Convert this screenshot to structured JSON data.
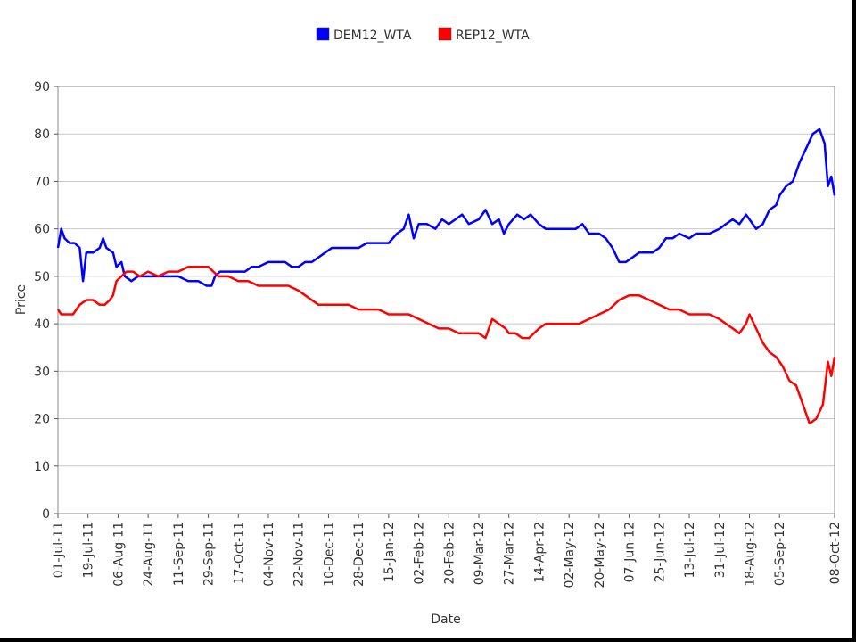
{
  "chart_data": {
    "type": "line",
    "title": "",
    "xlabel": "Date",
    "ylabel": "Price",
    "ylim": [
      0,
      90
    ],
    "yticks": [
      0,
      10,
      20,
      30,
      40,
      50,
      60,
      70,
      80,
      90
    ],
    "grid": true,
    "legend_position": "top-center",
    "x_tick_labels": [
      "01-Jul-11",
      "19-Jul-11",
      "06-Aug-11",
      "24-Aug-11",
      "11-Sep-11",
      "29-Sep-11",
      "17-Oct-11",
      "04-Nov-11",
      "22-Nov-11",
      "10-Dec-11",
      "28-Dec-11",
      "15-Jan-12",
      "02-Feb-12",
      "20-Feb-12",
      "09-Mar-12",
      "27-Mar-12",
      "14-Apr-12",
      "02-May-12",
      "20-May-12",
      "07-Jun-12",
      "25-Jun-12",
      "13-Jul-12",
      "31-Jul-12",
      "18-Aug-12",
      "05-Sep-12",
      "08-Oct-12"
    ],
    "x_start": "01-Jul-11",
    "x_end": "08-Oct-12",
    "series": [
      {
        "name": "DEM12_WTA",
        "color": "#0000ff",
        "points": [
          [
            "01-Jul-11",
            56
          ],
          [
            "03-Jul-11",
            60
          ],
          [
            "05-Jul-11",
            58
          ],
          [
            "08-Jul-11",
            57
          ],
          [
            "11-Jul-11",
            57
          ],
          [
            "14-Jul-11",
            56
          ],
          [
            "16-Jul-11",
            49
          ],
          [
            "18-Jul-11",
            55
          ],
          [
            "22-Jul-11",
            55
          ],
          [
            "26-Jul-11",
            56
          ],
          [
            "28-Jul-11",
            58
          ],
          [
            "30-Jul-11",
            56
          ],
          [
            "03-Aug-11",
            55
          ],
          [
            "05-Aug-11",
            52
          ],
          [
            "08-Aug-11",
            53
          ],
          [
            "10-Aug-11",
            50
          ],
          [
            "14-Aug-11",
            49
          ],
          [
            "18-Aug-11",
            50
          ],
          [
            "24-Aug-11",
            50
          ],
          [
            "30-Aug-11",
            50
          ],
          [
            "05-Sep-11",
            50
          ],
          [
            "11-Sep-11",
            50
          ],
          [
            "17-Sep-11",
            49
          ],
          [
            "23-Sep-11",
            49
          ],
          [
            "28-Sep-11",
            48
          ],
          [
            "01-Oct-11",
            48
          ],
          [
            "03-Oct-11",
            50
          ],
          [
            "06-Oct-11",
            51
          ],
          [
            "10-Oct-11",
            51
          ],
          [
            "14-Oct-11",
            51
          ],
          [
            "17-Oct-11",
            51
          ],
          [
            "21-Oct-11",
            51
          ],
          [
            "25-Oct-11",
            52
          ],
          [
            "29-Oct-11",
            52
          ],
          [
            "04-Nov-11",
            53
          ],
          [
            "09-Nov-11",
            53
          ],
          [
            "14-Nov-11",
            53
          ],
          [
            "18-Nov-11",
            52
          ],
          [
            "22-Nov-11",
            52
          ],
          [
            "26-Nov-11",
            53
          ],
          [
            "30-Nov-11",
            53
          ],
          [
            "04-Dec-11",
            54
          ],
          [
            "08-Dec-11",
            55
          ],
          [
            "12-Dec-11",
            56
          ],
          [
            "18-Dec-11",
            56
          ],
          [
            "24-Dec-11",
            56
          ],
          [
            "28-Dec-11",
            56
          ],
          [
            "02-Jan-12",
            57
          ],
          [
            "07-Jan-12",
            57
          ],
          [
            "11-Jan-12",
            57
          ],
          [
            "15-Jan-12",
            57
          ],
          [
            "20-Jan-12",
            59
          ],
          [
            "24-Jan-12",
            60
          ],
          [
            "27-Jan-12",
            63
          ],
          [
            "30-Jan-12",
            58
          ],
          [
            "02-Feb-12",
            61
          ],
          [
            "07-Feb-12",
            61
          ],
          [
            "12-Feb-12",
            60
          ],
          [
            "16-Feb-12",
            62
          ],
          [
            "20-Feb-12",
            61
          ],
          [
            "24-Feb-12",
            62
          ],
          [
            "28-Feb-12",
            63
          ],
          [
            "03-Mar-12",
            61
          ],
          [
            "09-Mar-12",
            62
          ],
          [
            "13-Mar-12",
            64
          ],
          [
            "17-Mar-12",
            61
          ],
          [
            "21-Mar-12",
            62
          ],
          [
            "24-Mar-12",
            59
          ],
          [
            "27-Mar-12",
            61
          ],
          [
            "01-Apr-12",
            63
          ],
          [
            "05-Apr-12",
            62
          ],
          [
            "09-Apr-12",
            63
          ],
          [
            "14-Apr-12",
            61
          ],
          [
            "18-Apr-12",
            60
          ],
          [
            "22-Apr-12",
            60
          ],
          [
            "28-Apr-12",
            60
          ],
          [
            "02-May-12",
            60
          ],
          [
            "06-May-12",
            60
          ],
          [
            "10-May-12",
            61
          ],
          [
            "14-May-12",
            59
          ],
          [
            "18-May-12",
            59
          ],
          [
            "20-May-12",
            59
          ],
          [
            "24-May-12",
            58
          ],
          [
            "28-May-12",
            56
          ],
          [
            "01-Jun-12",
            53
          ],
          [
            "05-Jun-12",
            53
          ],
          [
            "09-Jun-12",
            54
          ],
          [
            "13-Jun-12",
            55
          ],
          [
            "17-Jun-12",
            55
          ],
          [
            "21-Jun-12",
            55
          ],
          [
            "25-Jun-12",
            56
          ],
          [
            "29-Jun-12",
            58
          ],
          [
            "03-Jul-12",
            58
          ],
          [
            "07-Jul-12",
            59
          ],
          [
            "13-Jul-12",
            58
          ],
          [
            "17-Jul-12",
            59
          ],
          [
            "21-Jul-12",
            59
          ],
          [
            "25-Jul-12",
            59
          ],
          [
            "31-Jul-12",
            60
          ],
          [
            "04-Aug-12",
            61
          ],
          [
            "08-Aug-12",
            62
          ],
          [
            "12-Aug-12",
            61
          ],
          [
            "16-Aug-12",
            63
          ],
          [
            "18-Aug-12",
            62
          ],
          [
            "22-Aug-12",
            60
          ],
          [
            "26-Aug-12",
            61
          ],
          [
            "30-Aug-12",
            64
          ],
          [
            "03-Sep-12",
            65
          ],
          [
            "05-Sep-12",
            67
          ],
          [
            "09-Sep-12",
            69
          ],
          [
            "13-Sep-12",
            70
          ],
          [
            "17-Sep-12",
            74
          ],
          [
            "21-Sep-12",
            77
          ],
          [
            "25-Sep-12",
            80
          ],
          [
            "29-Sep-12",
            81
          ],
          [
            "02-Oct-12",
            78
          ],
          [
            "04-Oct-12",
            69
          ],
          [
            "06-Oct-12",
            71
          ],
          [
            "08-Oct-12",
            67
          ]
        ]
      },
      {
        "name": "REP12_WTA",
        "color": "#ff0000",
        "points": [
          [
            "01-Jul-11",
            43
          ],
          [
            "03-Jul-11",
            42
          ],
          [
            "06-Jul-11",
            42
          ],
          [
            "10-Jul-11",
            42
          ],
          [
            "14-Jul-11",
            44
          ],
          [
            "18-Jul-11",
            45
          ],
          [
            "22-Jul-11",
            45
          ],
          [
            "26-Jul-11",
            44
          ],
          [
            "29-Jul-11",
            44
          ],
          [
            "01-Aug-11",
            45
          ],
          [
            "03-Aug-11",
            46
          ],
          [
            "05-Aug-11",
            49
          ],
          [
            "08-Aug-11",
            50
          ],
          [
            "11-Aug-11",
            51
          ],
          [
            "15-Aug-11",
            51
          ],
          [
            "19-Aug-11",
            50
          ],
          [
            "24-Aug-11",
            51
          ],
          [
            "30-Aug-11",
            50
          ],
          [
            "05-Sep-11",
            51
          ],
          [
            "11-Sep-11",
            51
          ],
          [
            "17-Sep-11",
            52
          ],
          [
            "23-Sep-11",
            52
          ],
          [
            "29-Sep-11",
            52
          ],
          [
            "05-Oct-11",
            50
          ],
          [
            "11-Oct-11",
            50
          ],
          [
            "17-Oct-11",
            49
          ],
          [
            "23-Oct-11",
            49
          ],
          [
            "29-Oct-11",
            48
          ],
          [
            "04-Nov-11",
            48
          ],
          [
            "10-Nov-11",
            48
          ],
          [
            "16-Nov-11",
            48
          ],
          [
            "22-Nov-11",
            47
          ],
          [
            "26-Nov-11",
            46
          ],
          [
            "30-Nov-11",
            45
          ],
          [
            "04-Dec-11",
            44
          ],
          [
            "10-Dec-11",
            44
          ],
          [
            "16-Dec-11",
            44
          ],
          [
            "22-Dec-11",
            44
          ],
          [
            "28-Dec-11",
            43
          ],
          [
            "03-Jan-12",
            43
          ],
          [
            "09-Jan-12",
            43
          ],
          [
            "15-Jan-12",
            42
          ],
          [
            "21-Jan-12",
            42
          ],
          [
            "27-Jan-12",
            42
          ],
          [
            "02-Feb-12",
            41
          ],
          [
            "08-Feb-12",
            40
          ],
          [
            "14-Feb-12",
            39
          ],
          [
            "20-Feb-12",
            39
          ],
          [
            "26-Feb-12",
            38
          ],
          [
            "03-Mar-12",
            38
          ],
          [
            "09-Mar-12",
            38
          ],
          [
            "13-Mar-12",
            37
          ],
          [
            "17-Mar-12",
            41
          ],
          [
            "21-Mar-12",
            40
          ],
          [
            "25-Mar-12",
            39
          ],
          [
            "27-Mar-12",
            38
          ],
          [
            "31-Mar-12",
            38
          ],
          [
            "04-Apr-12",
            37
          ],
          [
            "08-Apr-12",
            37
          ],
          [
            "14-Apr-12",
            39
          ],
          [
            "18-Apr-12",
            40
          ],
          [
            "22-Apr-12",
            40
          ],
          [
            "28-Apr-12",
            40
          ],
          [
            "02-May-12",
            40
          ],
          [
            "08-May-12",
            40
          ],
          [
            "14-May-12",
            41
          ],
          [
            "20-May-12",
            42
          ],
          [
            "26-May-12",
            43
          ],
          [
            "01-Jun-12",
            45
          ],
          [
            "07-Jun-12",
            46
          ],
          [
            "13-Jun-12",
            46
          ],
          [
            "19-Jun-12",
            45
          ],
          [
            "25-Jun-12",
            44
          ],
          [
            "01-Jul-12",
            43
          ],
          [
            "07-Jul-12",
            43
          ],
          [
            "13-Jul-12",
            42
          ],
          [
            "19-Jul-12",
            42
          ],
          [
            "25-Jul-12",
            42
          ],
          [
            "31-Jul-12",
            41
          ],
          [
            "04-Aug-12",
            40
          ],
          [
            "08-Aug-12",
            39
          ],
          [
            "12-Aug-12",
            38
          ],
          [
            "16-Aug-12",
            40
          ],
          [
            "18-Aug-12",
            42
          ],
          [
            "22-Aug-12",
            39
          ],
          [
            "26-Aug-12",
            36
          ],
          [
            "30-Aug-12",
            34
          ],
          [
            "03-Sep-12",
            33
          ],
          [
            "07-Sep-12",
            31
          ],
          [
            "11-Sep-12",
            28
          ],
          [
            "15-Sep-12",
            27
          ],
          [
            "19-Sep-12",
            23
          ],
          [
            "23-Sep-12",
            19
          ],
          [
            "27-Sep-12",
            20
          ],
          [
            "01-Oct-12",
            23
          ],
          [
            "04-Oct-12",
            32
          ],
          [
            "06-Oct-12",
            29
          ],
          [
            "08-Oct-12",
            33
          ]
        ]
      }
    ]
  }
}
